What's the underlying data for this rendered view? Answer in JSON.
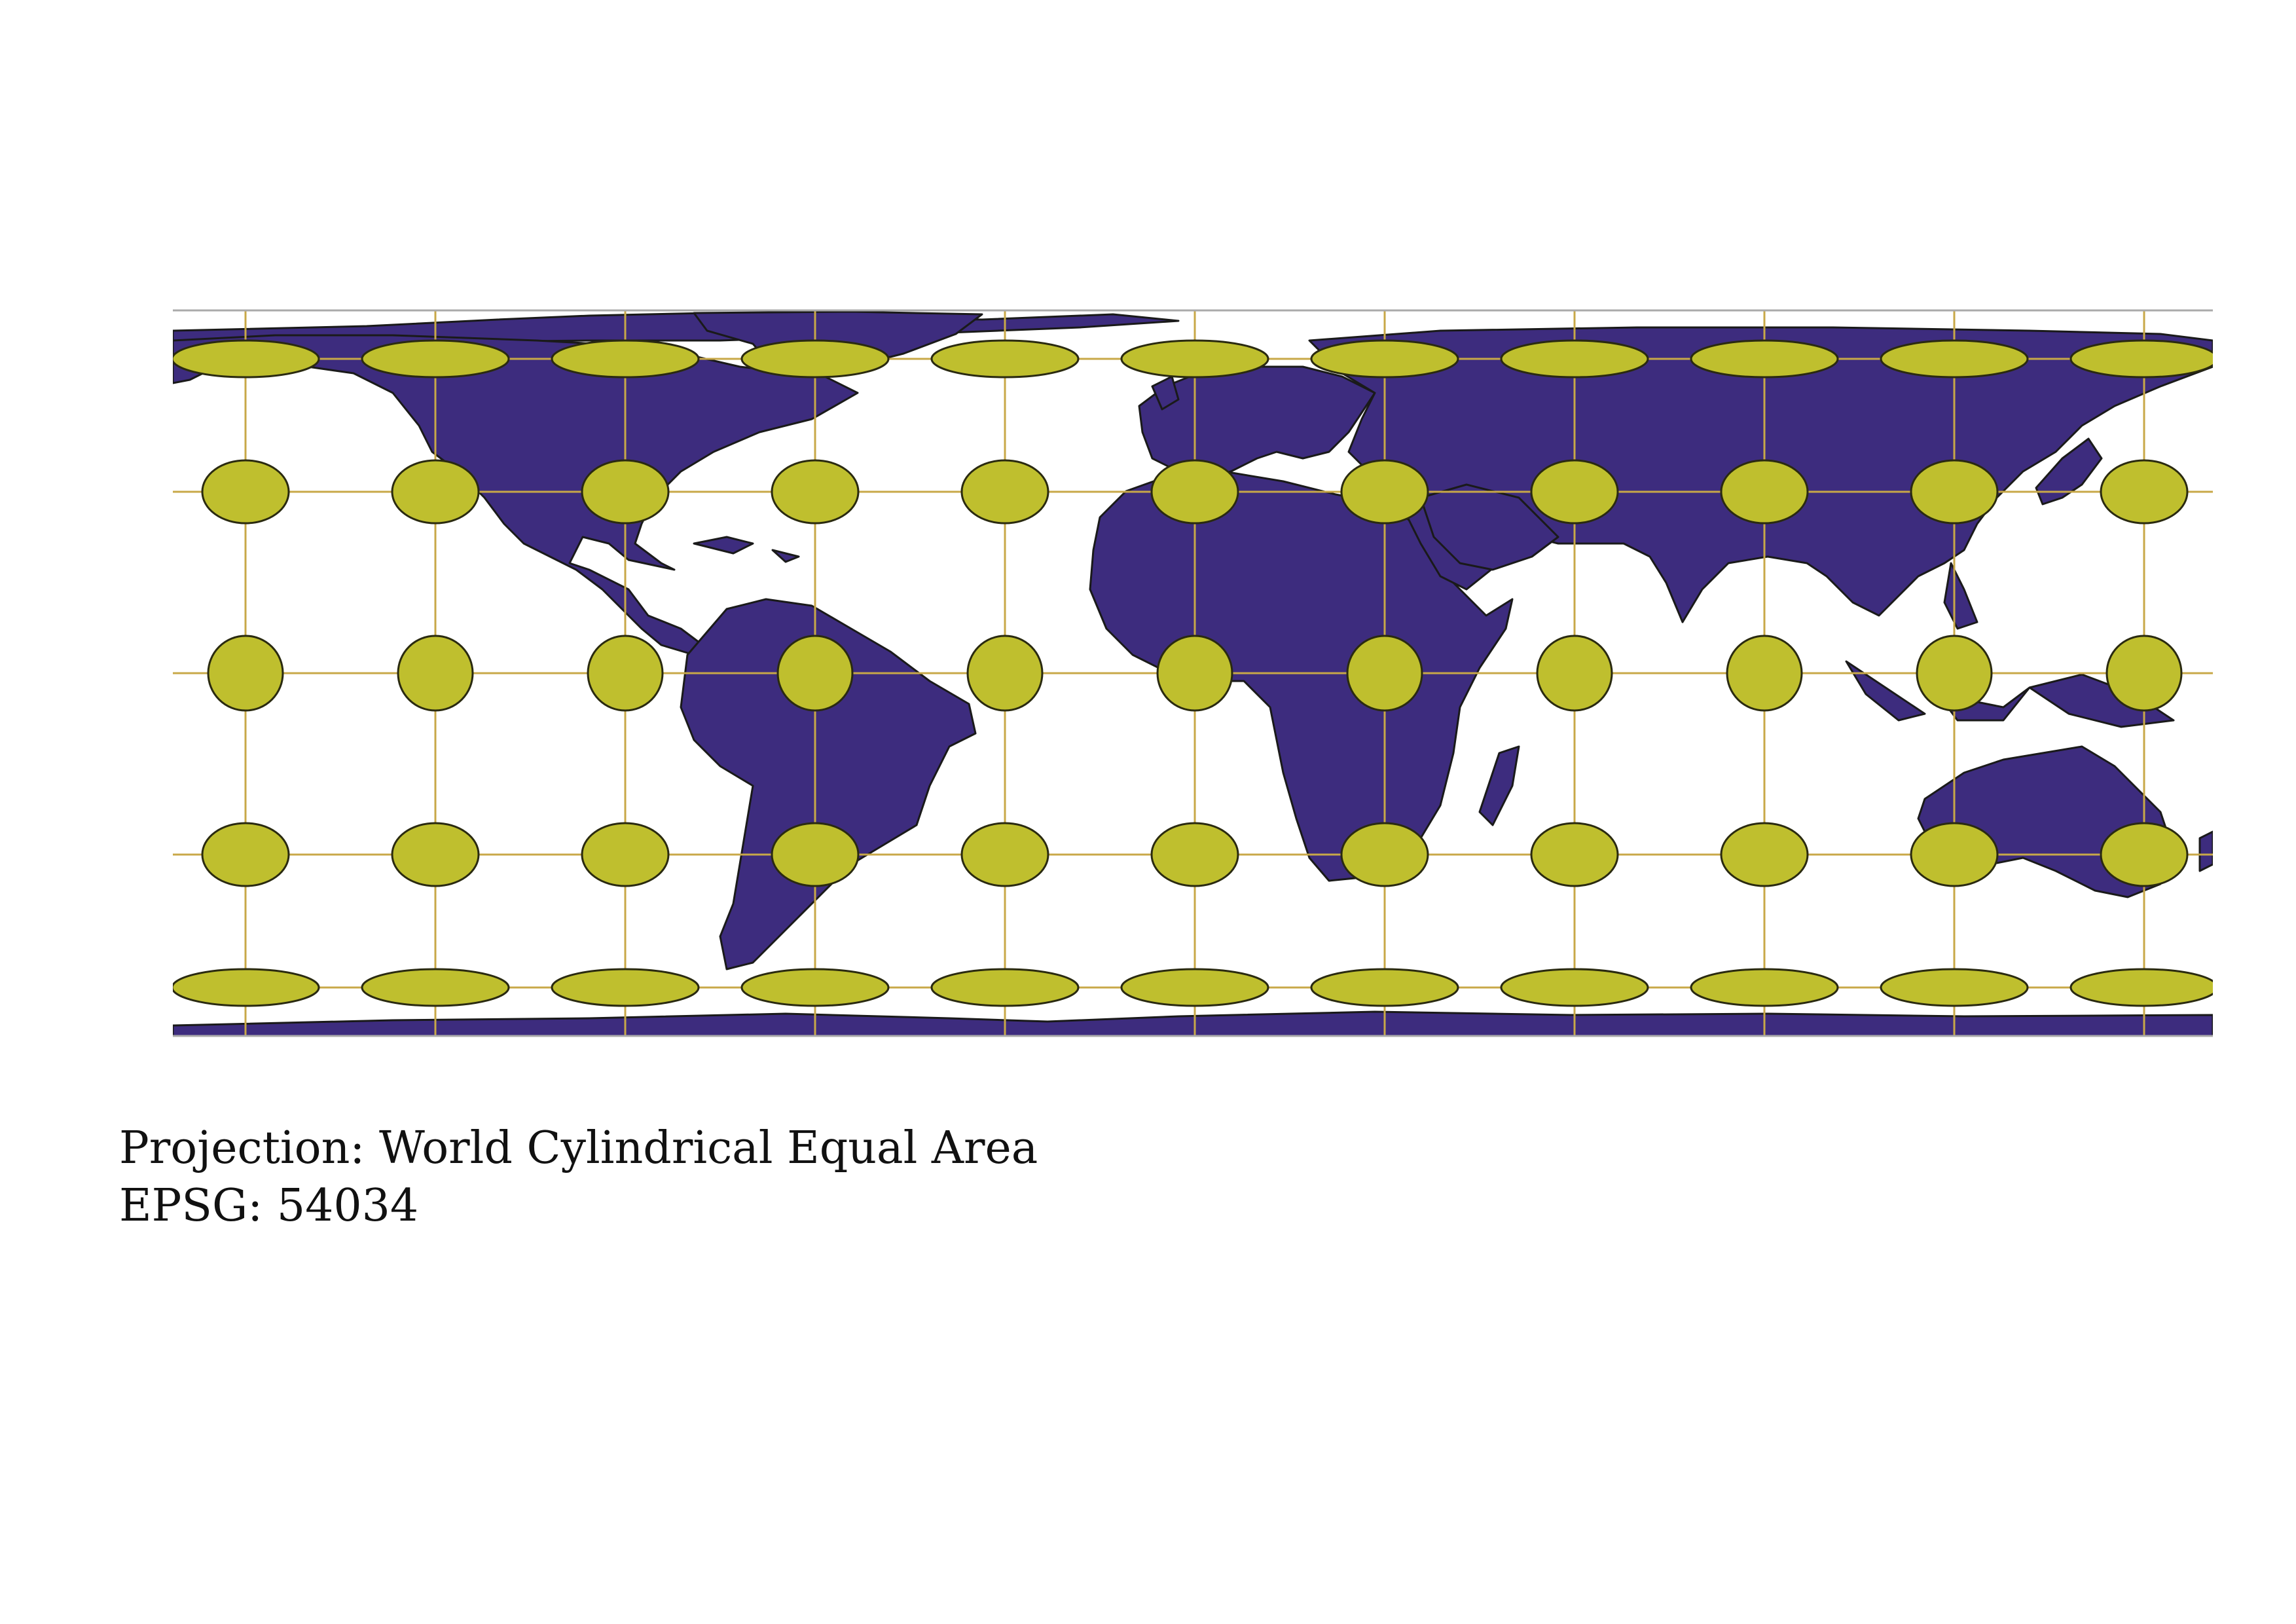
{
  "map": {
    "projection_label": "Projection: World Cylindrical Equal Area",
    "epsg_label": "EPSG: 54034",
    "colors": {
      "land": "#3d2c7e",
      "land_outline": "#1a1a1a",
      "ellipse_fill": "#bfbf2e",
      "ellipse_outline": "#2a2a10",
      "graticule_inner": "#c8a848",
      "graticule_outer": "#aaaaaa",
      "ocean": "#ffffff"
    },
    "tissot": {
      "longitudes": [
        -160,
        -120,
        -80,
        -40,
        0,
        40,
        80,
        120,
        160,
        200,
        240
      ],
      "latitudes": [
        75,
        40,
        0,
        -40,
        -75
      ],
      "description_visible": false
    }
  }
}
